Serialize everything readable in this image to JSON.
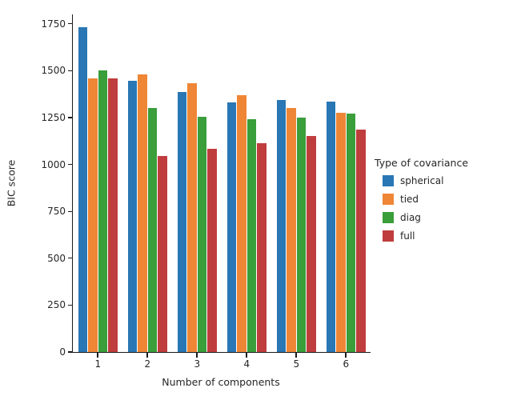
{
  "chart_data": {
    "type": "bar",
    "title": "",
    "xlabel": "Number of components",
    "ylabel": "BIC score",
    "categories": [
      "1",
      "2",
      "3",
      "4",
      "5",
      "6"
    ],
    "series": [
      {
        "name": "spherical",
        "color": "#2977b4",
        "values": [
          1730,
          1445,
          1385,
          1330,
          1345,
          1335
        ]
      },
      {
        "name": "tied",
        "color": "#ef8636",
        "values": [
          1460,
          1480,
          1435,
          1370,
          1300,
          1275
        ]
      },
      {
        "name": "diag",
        "color": "#3a9e3a",
        "values": [
          1500,
          1300,
          1255,
          1240,
          1250,
          1270
        ]
      },
      {
        "name": "full",
        "color": "#c03d3e",
        "values": [
          1460,
          1045,
          1085,
          1115,
          1150,
          1185
        ]
      }
    ],
    "ylim": [
      0,
      1800
    ],
    "yticks": [
      0,
      250,
      500,
      750,
      1000,
      1250,
      1500,
      1750
    ],
    "grid": false,
    "legend": {
      "title": "Type of covariance",
      "position": "right"
    }
  }
}
